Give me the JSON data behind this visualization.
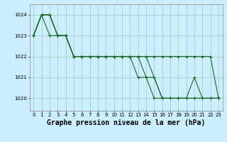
{
  "bg_color": "#cceeff",
  "grid_color": "#99ccbb",
  "line_color": "#1a6b2a",
  "marker_color": "#1a6b2a",
  "xlabel": "Graphe pression niveau de la mer (hPa)",
  "xlabel_fontsize": 7,
  "ylim": [
    1019.4,
    1024.5
  ],
  "xlim": [
    -0.5,
    23.5
  ],
  "yticks": [
    1020,
    1021,
    1022,
    1023,
    1024
  ],
  "xticks": [
    0,
    1,
    2,
    3,
    4,
    5,
    6,
    7,
    8,
    9,
    10,
    11,
    12,
    13,
    14,
    15,
    16,
    17,
    18,
    19,
    20,
    21,
    22,
    23
  ],
  "series": [
    [
      1023.0,
      1024.0,
      1023.0,
      1023.0,
      1023.0,
      1022.0,
      1022.0,
      1022.0,
      1022.0,
      1022.0,
      1022.0,
      1022.0,
      1022.0,
      1022.0,
      1022.0,
      1021.0,
      1020.0,
      1020.0,
      1020.0,
      1020.0,
      1020.0,
      1020.0,
      1020.0,
      1020.0
    ],
    [
      1023.0,
      1024.0,
      1024.0,
      1023.0,
      1023.0,
      1022.0,
      1022.0,
      1022.0,
      1022.0,
      1022.0,
      1022.0,
      1022.0,
      1022.0,
      1021.0,
      1021.0,
      1021.0,
      1020.0,
      1020.0,
      1020.0,
      1020.0,
      1021.0,
      1020.0,
      1020.0,
      1020.0
    ],
    [
      1023.0,
      1024.0,
      1024.0,
      1023.0,
      1023.0,
      1022.0,
      1022.0,
      1022.0,
      1022.0,
      1022.0,
      1022.0,
      1022.0,
      1022.0,
      1022.0,
      1021.0,
      1020.0,
      1020.0,
      1020.0,
      1020.0,
      1020.0,
      1020.0,
      1020.0,
      1020.0,
      1020.0
    ],
    [
      1023.0,
      1024.0,
      1024.0,
      1023.0,
      1023.0,
      1022.0,
      1022.0,
      1022.0,
      1022.0,
      1022.0,
      1022.0,
      1022.0,
      1022.0,
      1022.0,
      1022.0,
      1022.0,
      1022.0,
      1022.0,
      1022.0,
      1022.0,
      1022.0,
      1022.0,
      1022.0,
      1020.0
    ]
  ]
}
